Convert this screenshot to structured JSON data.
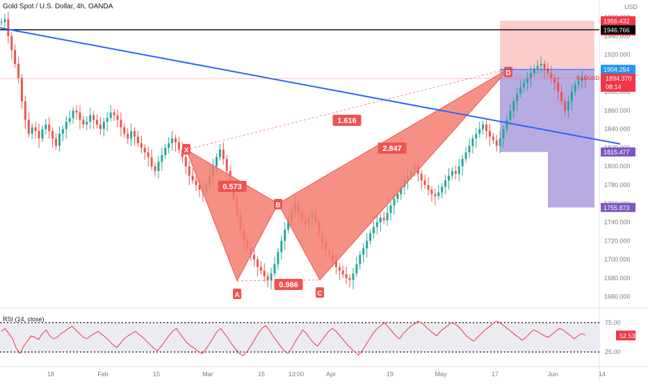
{
  "header": {
    "title": "Gold Spot / U.S. Dollar, 4h, OANDA",
    "currency": "USD"
  },
  "colors": {
    "harmonic_fill": "#f47c70",
    "harmonic_stroke": "#ef5350",
    "trendline": "#2962ff",
    "price_line": "#ef5350",
    "stop_zone": "#f8bcb9",
    "target_zone": "#9f8fd8",
    "rsi": "#f23645"
  },
  "chart_data": [
    {
      "type": "candlestick",
      "title": "Gold Spot / U.S. Dollar, 4h, OANDA",
      "symbol": "XAUUSD",
      "current_price": 1894.37,
      "countdown": "08:14",
      "ylim": [
        1650,
        1975
      ],
      "y_ticks": [
        1660,
        1680,
        1700,
        1720,
        1740,
        1760,
        1780,
        1800,
        1820,
        1840,
        1860,
        1880,
        1900,
        1920,
        1940,
        1960
      ],
      "y_tick_labels": [
        "1660.000",
        "1680.000",
        "1700.000",
        "1720.000",
        "1740.000",
        "1760.000",
        "1780.000",
        "1800.000",
        "1820.000",
        "1840.000",
        "1860.000",
        "1880.000",
        "1900.000",
        "1920.000",
        "1940.000",
        "1960.000"
      ],
      "x_ticks": [
        "18",
        "Feb",
        "15",
        "Mar",
        "15",
        "13:00",
        "Apr",
        "19",
        "May",
        "17",
        "Jun",
        "14"
      ],
      "price_labels": [
        {
          "label": "1956.432",
          "value": 1956.432,
          "color": "#f23645"
        },
        {
          "label": "1956.432",
          "value": 1945.5,
          "color": "#f23645"
        },
        {
          "label": "1946.766",
          "value": 1946.766,
          "color": "#000000"
        },
        {
          "label": "1904.254",
          "value": 1904.254,
          "color": "#2196f3"
        },
        {
          "label": "1904.254",
          "value": 1893.5,
          "color": "#f23645"
        },
        {
          "label": "1815.477",
          "value": 1815.477,
          "color": "#7e57c2"
        },
        {
          "label": "1755.873",
          "value": 1755.873,
          "color": "#7e57c2"
        }
      ],
      "horizontal_line": 1946.766,
      "trendline": {
        "from": {
          "date": "Jan 5",
          "price": 1960
        },
        "to": {
          "date": "Jun 14",
          "price": 1833
        }
      },
      "harmonic_pattern": {
        "points": [
          {
            "label": "X",
            "price": 1818
          },
          {
            "label": "A",
            "price": 1677
          },
          {
            "label": "B",
            "price": 1760
          },
          {
            "label": "C",
            "price": 1678
          },
          {
            "label": "D",
            "price": 1905
          }
        ],
        "ratios": [
          "0.573",
          "0.986",
          "2.847",
          "1.616"
        ]
      },
      "position": {
        "entry": 1904.254,
        "stop": 1956.432,
        "target": 1815.477,
        "target2": 1755.873
      },
      "close_series": [
        1955,
        1958,
        1940,
        1925,
        1910,
        1895,
        1870,
        1850,
        1835,
        1842,
        1838,
        1830,
        1840,
        1845,
        1838,
        1830,
        1822,
        1835,
        1840,
        1848,
        1852,
        1860,
        1858,
        1850,
        1845,
        1848,
        1855,
        1850,
        1845,
        1840,
        1848,
        1852,
        1858,
        1855,
        1850,
        1842,
        1835,
        1830,
        1838,
        1832,
        1825,
        1820,
        1815,
        1810,
        1800,
        1795,
        1805,
        1812,
        1820,
        1825,
        1830,
        1826,
        1818,
        1810,
        1800,
        1790,
        1785,
        1780,
        1775,
        1772,
        1780,
        1790,
        1800,
        1810,
        1818,
        1808,
        1795,
        1780,
        1765,
        1748,
        1732,
        1720,
        1712,
        1705,
        1700,
        1692,
        1688,
        1682,
        1678,
        1685,
        1695,
        1708,
        1720,
        1732,
        1742,
        1752,
        1760,
        1750,
        1742,
        1738,
        1745,
        1750,
        1740,
        1728,
        1718,
        1710,
        1705,
        1698,
        1692,
        1688,
        1684,
        1680,
        1678,
        1685,
        1695,
        1705,
        1712,
        1720,
        1728,
        1735,
        1740,
        1745,
        1742,
        1750,
        1758,
        1765,
        1770,
        1778,
        1785,
        1790,
        1795,
        1800,
        1792,
        1785,
        1780,
        1775,
        1770,
        1768,
        1772,
        1778,
        1785,
        1790,
        1795,
        1792,
        1800,
        1808,
        1815,
        1822,
        1830,
        1835,
        1840,
        1845,
        1838,
        1832,
        1828,
        1822,
        1830,
        1840,
        1850,
        1860,
        1870,
        1878,
        1885,
        1890,
        1895,
        1900,
        1905,
        1908,
        1910,
        1905,
        1900,
        1895,
        1890,
        1880,
        1870,
        1860,
        1870,
        1880,
        1888,
        1892,
        1895,
        1894
      ],
      "rsi": {
        "label": "RSI (14, close)",
        "value": "52.53",
        "ylim": [
          15,
          85
        ],
        "levels": [
          70,
          30
        ],
        "level_labels": [
          "75.00",
          "25.00"
        ],
        "values": [
          58,
          62,
          55,
          48,
          35,
          28,
          38,
          45,
          52,
          50,
          47,
          55,
          60,
          52,
          48,
          50,
          55,
          58,
          62,
          65,
          60,
          55,
          50,
          48,
          52,
          55,
          58,
          54,
          50,
          45,
          40,
          36,
          42,
          48,
          52,
          55,
          58,
          54,
          50,
          45,
          40,
          35,
          32,
          38,
          45,
          52,
          58,
          62,
          55,
          48,
          42,
          38,
          35,
          30,
          28,
          34,
          42,
          50,
          58,
          62,
          55,
          48,
          40,
          34,
          28,
          25,
          30,
          38,
          46,
          55,
          62,
          66,
          60,
          52,
          45,
          38,
          32,
          28,
          35,
          44,
          52,
          60,
          55,
          48,
          42,
          38,
          45,
          52,
          58,
          62,
          58,
          52,
          46,
          40,
          35,
          30,
          26,
          32,
          40,
          48,
          56,
          62,
          66,
          70,
          64,
          58,
          52,
          48,
          55,
          60,
          65,
          68,
          72,
          70,
          65,
          60,
          56,
          52,
          58,
          62,
          66,
          70,
          68,
          64,
          58,
          52,
          48,
          45,
          50,
          55,
          60,
          64,
          68,
          72,
          70,
          66,
          62,
          58,
          54,
          50,
          46,
          50,
          55,
          60,
          58,
          55,
          52,
          50,
          54,
          58,
          62,
          60,
          56,
          52,
          48,
          52,
          55,
          53
        ]
      }
    }
  ]
}
